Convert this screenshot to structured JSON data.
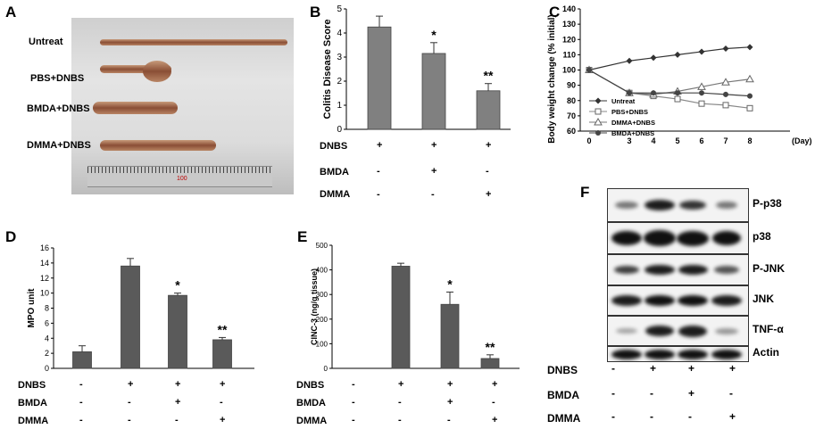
{
  "panels": {
    "A": {
      "letter": "A",
      "labels": [
        "Untreat",
        "PBS+DNBS",
        "BMDA+DNBS",
        "DMMA+DNBS"
      ],
      "ruler_number": "100"
    },
    "B": {
      "letter": "B",
      "row_labels": [
        "DNBS",
        "BMDA",
        "DMMA"
      ],
      "signs": [
        [
          "+",
          "+",
          "+"
        ],
        [
          "-",
          "+",
          "-"
        ],
        [
          "-",
          "-",
          "+"
        ]
      ],
      "stars": [
        "",
        "*",
        "**"
      ]
    },
    "C": {
      "letter": "C",
      "x_unit": "(Day)",
      "legend": [
        "Untreat",
        "PBS+DNBS",
        "DMMA+DNBS",
        "BMDA+DNBS"
      ]
    },
    "D": {
      "letter": "D",
      "row_labels": [
        "DNBS",
        "BMDA",
        "DMMA"
      ],
      "signs": [
        [
          "-",
          "+",
          "+",
          "+"
        ],
        [
          "-",
          "-",
          "+",
          "-"
        ],
        [
          "-",
          "-",
          "-",
          "+"
        ]
      ],
      "stars": [
        "",
        "",
        "*",
        "**"
      ]
    },
    "E": {
      "letter": "E",
      "row_labels": [
        "DNBS",
        "BMDA",
        "DMMA"
      ],
      "signs": [
        [
          "-",
          "+",
          "+",
          "+"
        ],
        [
          "-",
          "-",
          "+",
          "-"
        ],
        [
          "-",
          "-",
          "-",
          "+"
        ]
      ],
      "stars": [
        "",
        "",
        "*",
        "**"
      ]
    },
    "F": {
      "letter": "F",
      "blot_labels": [
        "P-p38",
        "p38",
        "P-JNK",
        "JNK",
        "TNF-α",
        "Actin"
      ],
      "row_labels": [
        "DNBS",
        "BMDA",
        "DMMA"
      ],
      "signs": [
        [
          "-",
          "+",
          "+",
          "+"
        ],
        [
          "-",
          "-",
          "+",
          "-"
        ],
        [
          "-",
          "-",
          "-",
          "+"
        ]
      ]
    }
  },
  "chart_data": [
    {
      "id": "B",
      "type": "bar",
      "categories": [
        "DNBS",
        "DNBS+BMDA",
        "DNBS+DMMA"
      ],
      "values": [
        4.25,
        3.15,
        1.6
      ],
      "errors": [
        0.45,
        0.45,
        0.3
      ],
      "ylabel": "Colitis Disease Score",
      "ylim": [
        0,
        5
      ],
      "yticks": [
        "0",
        "1",
        "2",
        "3",
        "4",
        "5"
      ],
      "bar_color": "#808080"
    },
    {
      "id": "C",
      "type": "line",
      "x": [
        0,
        3,
        4,
        5,
        6,
        7,
        8
      ],
      "xticks": [
        "0",
        "3",
        "4",
        "5",
        "6",
        "7",
        "8"
      ],
      "ylabel": "Body weight change (% initial)",
      "ylim": [
        60,
        140
      ],
      "yticks": [
        "60",
        "70",
        "80",
        "90",
        "100",
        "110",
        "120",
        "130",
        "140"
      ],
      "series": [
        {
          "name": "Untreat",
          "values": [
            100,
            106,
            108,
            110,
            112,
            114,
            115
          ],
          "marker": "diamond"
        },
        {
          "name": "PBS+DNBS",
          "values": [
            100,
            85,
            83,
            81,
            78,
            77,
            75
          ],
          "marker": "square-open"
        },
        {
          "name": "DMMA+DNBS",
          "values": [
            100,
            85,
            84,
            86,
            89,
            92,
            94
          ],
          "marker": "triangle-open"
        },
        {
          "name": "BMDA+DNBS",
          "values": [
            100,
            85,
            85,
            85,
            85,
            84,
            83
          ],
          "marker": "circle"
        }
      ]
    },
    {
      "id": "D",
      "type": "bar",
      "categories": [
        "Control",
        "DNBS",
        "DNBS+BMDA",
        "DNBS+DMMA"
      ],
      "values": [
        2.2,
        13.6,
        9.7,
        3.8
      ],
      "errors": [
        0.8,
        1.0,
        0.3,
        0.3
      ],
      "ylabel": "MPO unit",
      "ylim": [
        0,
        16
      ],
      "yticks": [
        "0",
        "2",
        "4",
        "6",
        "8",
        "10",
        "12",
        "14",
        "16"
      ],
      "bar_color": "#5a5a5a"
    },
    {
      "id": "E",
      "type": "bar",
      "categories": [
        "Control",
        "DNBS",
        "DNBS+BMDA",
        "DNBS+DMMA"
      ],
      "values": [
        0,
        415,
        260,
        40
      ],
      "errors": [
        0,
        12,
        50,
        15
      ],
      "ylabel": "CINC-3 (ng/g tissue)",
      "ylim": [
        0,
        500
      ],
      "yticks": [
        "0",
        "100",
        "200",
        "300",
        "400",
        "500"
      ],
      "bar_color": "#5a5a5a"
    }
  ]
}
